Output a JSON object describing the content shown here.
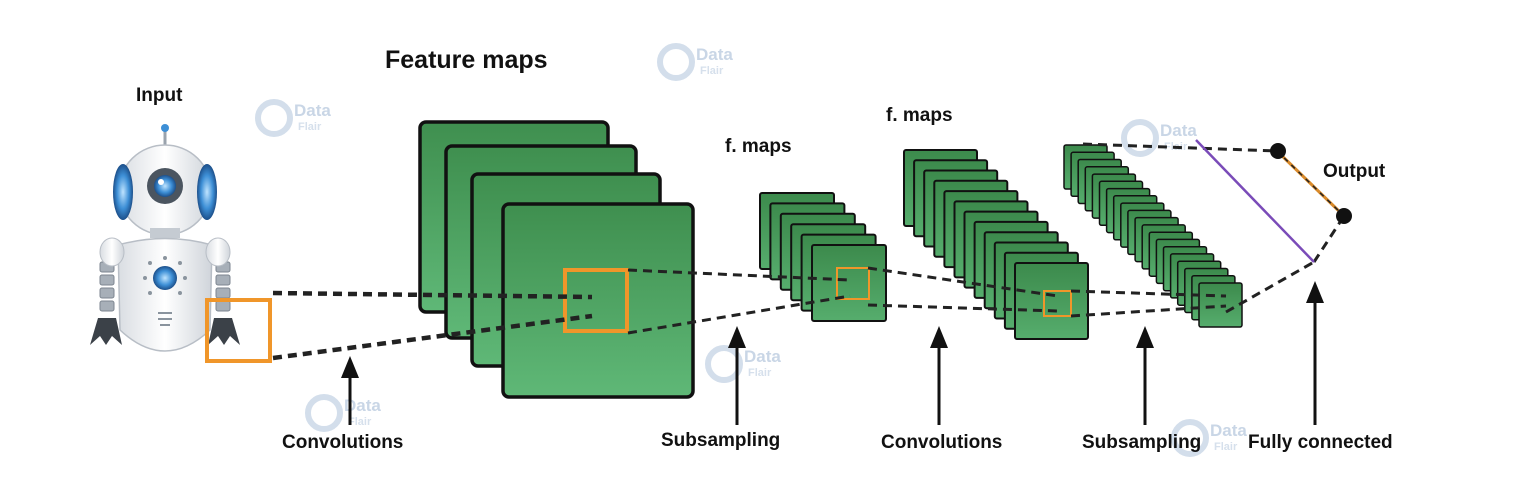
{
  "labels": {
    "input": "Input",
    "feature_maps": "Feature maps",
    "f_maps_1": "f. maps",
    "f_maps_2": "f. maps",
    "output": "Output",
    "convolutions_1": "Convolutions",
    "subsampling_1": "Subsampling",
    "convolutions_2": "Convolutions",
    "subsampling_2": "Subsampling",
    "fully_connected": "Fully connected"
  },
  "watermark": {
    "line1": "Data",
    "line2": "Flair"
  },
  "stages": {
    "feature_maps_count": 4,
    "subsampling_1_count": 6,
    "convolution_2_count": 12,
    "subsampling_2_count": 20
  },
  "colors": {
    "map_fill_top": "#3f8f4f",
    "map_fill_bottom": "#5fb877",
    "map_border": "#111111",
    "receptive_field": "#f0962a",
    "connection_line": "#222222",
    "fc_purple": "#7a4bb8",
    "fc_orange": "#d98a2a",
    "robot_blue": "#3d8fd6"
  },
  "icons": [
    "robot-icon",
    "watermark-logo-icon"
  ]
}
